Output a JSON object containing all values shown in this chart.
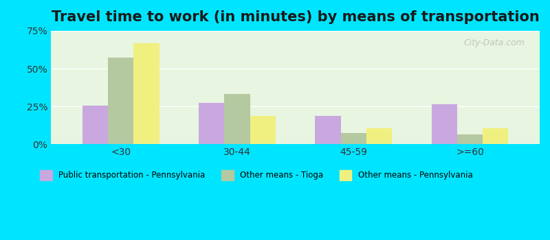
{
  "title": "Travel time to work (in minutes) by means of transportation",
  "categories": [
    "<30",
    "30-44",
    "45-59",
    ">=60"
  ],
  "series": {
    "Public transportation - Pennsylvania": [
      25.5,
      27.5,
      19.0,
      26.5
    ],
    "Other means - Tioga": [
      57.5,
      33.5,
      7.5,
      6.5
    ],
    "Other means - Pennsylvania": [
      67.0,
      19.0,
      10.5,
      10.5
    ]
  },
  "colors": {
    "Public transportation - Pennsylvania": "#c9a8e0",
    "Other means - Tioga": "#b5c9a0",
    "Other means - Pennsylvania": "#f0f080"
  },
  "ylim": [
    0,
    75
  ],
  "yticks": [
    0,
    25,
    50,
    75
  ],
  "yticklabels": [
    "0%",
    "25%",
    "50%",
    "75%"
  ],
  "bg_outer": "#00e5ff",
  "bg_plot": "#e8f5e0",
  "title_fontsize": 15,
  "bar_width": 0.22
}
